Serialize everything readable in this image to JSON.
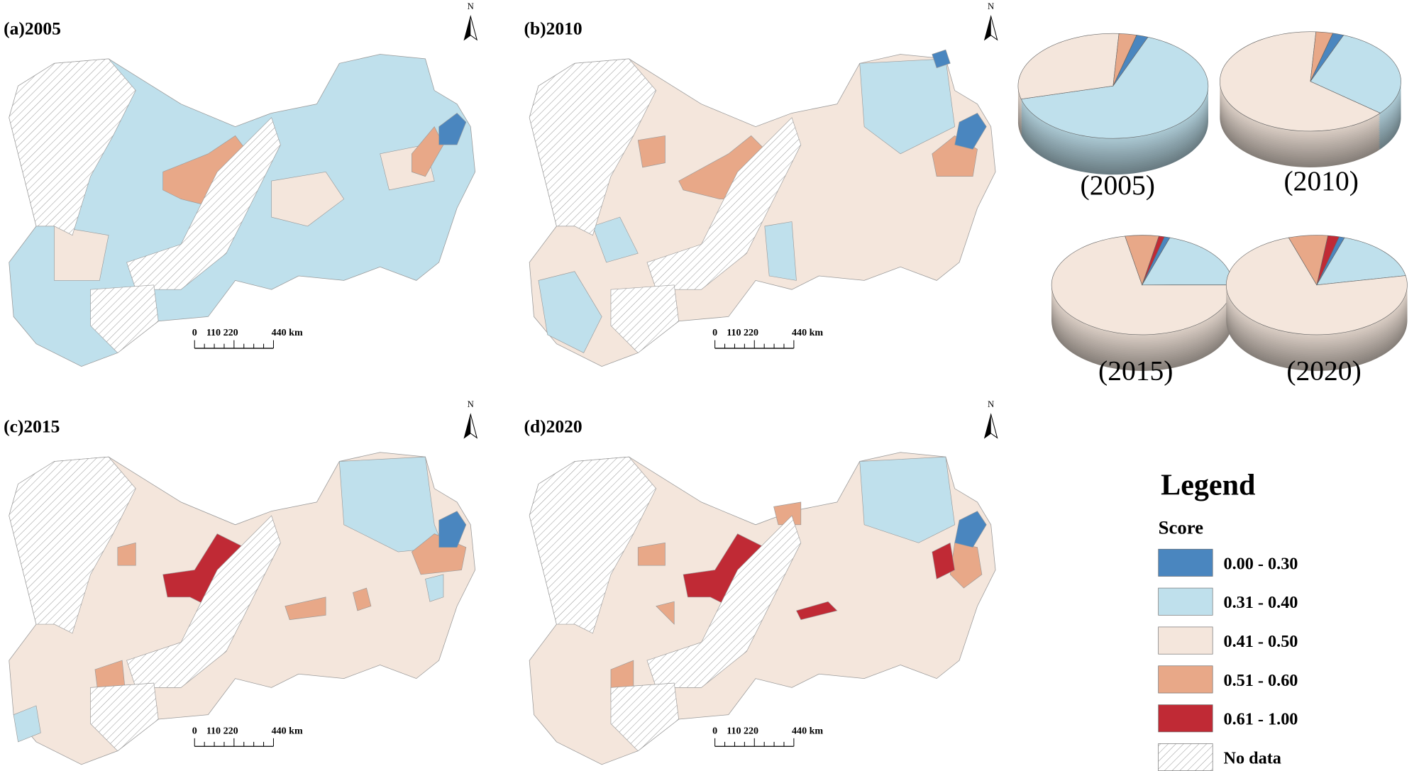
{
  "maps": [
    {
      "title": "(a)2005"
    },
    {
      "title": "(b)2010"
    },
    {
      "title": "(c)2015"
    },
    {
      "title": "(d)2020"
    }
  ],
  "north": "N",
  "scale_bar": [
    "0",
    "110 220",
    "440 km"
  ],
  "pies": [
    {
      "label": "(2005)",
      "values": [
        2,
        65,
        30,
        3,
        0
      ]
    },
    {
      "label": "(2010)",
      "values": [
        2,
        30,
        65,
        3,
        0
      ]
    },
    {
      "label": "(2015)",
      "values": [
        1,
        20,
        72,
        6,
        1
      ]
    },
    {
      "label": "(2020)",
      "values": [
        1,
        17,
        73,
        7,
        2
      ]
    }
  ],
  "legend": {
    "title": "Legend",
    "subtitle": "Score",
    "items": [
      {
        "label": "0.00 - 0.30",
        "color": "#4a86bf"
      },
      {
        "label": "0.31 - 0.40",
        "color": "#bfe0ec"
      },
      {
        "label": "0.41 - 0.50",
        "color": "#f4e6dc"
      },
      {
        "label": "0.51 - 0.60",
        "color": "#e8a888"
      },
      {
        "label": "0.61 - 1.00",
        "color": "#c02a35"
      }
    ],
    "no_data": "No data"
  }
}
